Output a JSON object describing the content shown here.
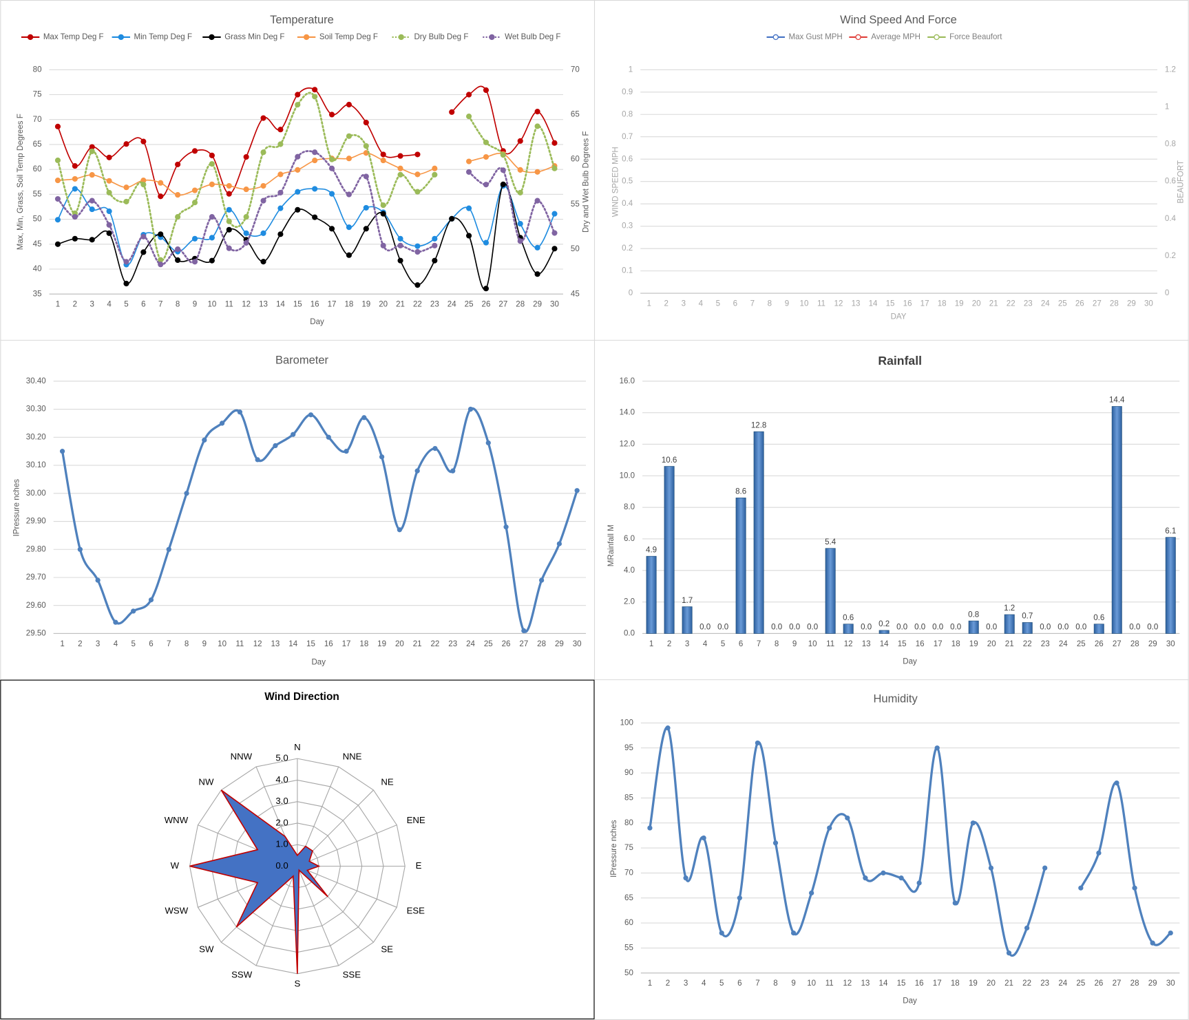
{
  "chart_data": [
    {
      "type": "line",
      "title": "Temperature",
      "xlabel": "Day",
      "ylabel": "Max, Min, Grass, Soil Temp Degrees F",
      "y2label": "Dry and Wet Bulb Degrees F",
      "categories": [
        1,
        2,
        3,
        4,
        5,
        6,
        7,
        8,
        9,
        10,
        11,
        12,
        13,
        14,
        15,
        16,
        17,
        18,
        19,
        20,
        21,
        22,
        23,
        24,
        25,
        26,
        27,
        28,
        29,
        30
      ],
      "ylim": [
        35,
        80
      ],
      "yticks": [
        35,
        40,
        45,
        50,
        55,
        60,
        65,
        70,
        75,
        80
      ],
      "y2lim": [
        45,
        70
      ],
      "y2ticks": [
        45,
        50,
        55,
        60,
        65,
        70
      ],
      "grid": true,
      "legend": "top",
      "series": [
        {
          "name": "Max Temp Deg F",
          "color": "#c00000",
          "marker": "circle",
          "values": [
            68.6,
            60.7,
            64.5,
            62.4,
            65.1,
            65.6,
            54.6,
            61,
            63.7,
            62.8,
            55.1,
            62.5,
            70.3,
            68,
            75,
            76,
            71,
            73,
            69.4,
            63,
            62.7,
            63,
            null,
            71.5,
            75,
            75.9,
            63.7,
            65.7,
            71.6,
            65.3
          ]
        },
        {
          "name": "Min Temp Deg F",
          "color": "#1f8ce0",
          "marker": "circle",
          "values": [
            49.9,
            56.1,
            52,
            51.6,
            40.9,
            46.9,
            46.4,
            43.5,
            46.1,
            46.3,
            51.9,
            47.2,
            47.2,
            52.2,
            55.5,
            56.1,
            55.1,
            48.4,
            52.3,
            51.4,
            46.1,
            44.6,
            46.1,
            50.1,
            52.2,
            45.3,
            56.7,
            49.1,
            44.3,
            51.1
          ]
        },
        {
          "name": "Grass Min Deg F",
          "color": "#000000",
          "marker": "circle",
          "values": [
            45,
            46.1,
            45.9,
            47.2,
            37.1,
            43.4,
            47,
            41.8,
            42.1,
            41.7,
            47.9,
            45.9,
            41.5,
            47,
            51.9,
            50.4,
            48.1,
            42.8,
            48.1,
            51.1,
            41.7,
            36.8,
            41.7,
            50.1,
            46.7,
            36.1,
            57,
            46.3,
            39,
            44.1
          ]
        },
        {
          "name": "Soil Temp Deg F",
          "color": "#f79646",
          "marker": "circle",
          "values": [
            57.8,
            58.1,
            58.9,
            57.7,
            56.4,
            57.8,
            57.3,
            54.9,
            55.8,
            57,
            56.7,
            56,
            56.7,
            59,
            59.9,
            61.8,
            62.2,
            62.2,
            63.3,
            61.8,
            60.2,
            59,
            60.2,
            null,
            61.6,
            62.5,
            63.1,
            59.9,
            59.5,
            60.7
          ]
        },
        {
          "name": "Dry Bulb Deg F",
          "color": "#9bbb59",
          "marker": "circle",
          "line_style": "dotted",
          "axis": "y2",
          "values": [
            59.9,
            54,
            60.9,
            56.3,
            55.3,
            57.2,
            48.8,
            53.6,
            55.2,
            59.5,
            53.1,
            53.6,
            60.8,
            61.7,
            66.1,
            67,
            60,
            62.6,
            61.5,
            54.9,
            58.3,
            56.4,
            58.3,
            null,
            64.8,
            61.9,
            60.5,
            56.3,
            63.7,
            59
          ]
        },
        {
          "name": "Wet Bulb Deg F",
          "color": "#8064a2",
          "marker": "circle",
          "line_style": "dotted",
          "axis": "y2",
          "values": [
            55.6,
            53.6,
            55.4,
            52.7,
            48.6,
            51.4,
            48.3,
            50,
            48.6,
            53.6,
            50.1,
            50.7,
            55.4,
            56.3,
            60.3,
            60.8,
            59,
            56.1,
            58.1,
            50.4,
            50.4,
            49.7,
            50.4,
            null,
            58.6,
            57.2,
            58.8,
            50.9,
            55.4,
            51.8
          ]
        }
      ]
    },
    {
      "type": "line",
      "title": "Wind Speed And Force",
      "xlabel": "DAY",
      "ylabel": "WIND SPEED MPH",
      "y2label": "BEAUFORT",
      "categories": [
        1,
        2,
        3,
        4,
        5,
        6,
        7,
        8,
        9,
        10,
        11,
        12,
        13,
        14,
        15,
        16,
        17,
        18,
        19,
        20,
        21,
        22,
        23,
        24,
        25,
        26,
        27,
        28,
        29,
        30
      ],
      "ylim": [
        0,
        1
      ],
      "yticks": [
        0,
        0.1,
        0.2,
        0.3,
        0.4,
        0.5,
        0.6,
        0.7,
        0.8,
        0.9,
        1
      ],
      "y2lim": [
        0,
        1.2
      ],
      "y2ticks": [
        0,
        0.2,
        0.4,
        0.6,
        0.8,
        1,
        1.2
      ],
      "grid": true,
      "legend": "top",
      "series": [
        {
          "name": "Max Gust MPH",
          "color": "#4472c4",
          "marker": "hollow",
          "values": [
            null,
            null,
            null,
            null,
            null,
            null,
            null,
            null,
            null,
            null,
            null,
            null,
            null,
            null,
            null,
            null,
            null,
            null,
            null,
            null,
            null,
            null,
            null,
            null,
            null,
            null,
            null,
            null,
            null,
            null
          ]
        },
        {
          "name": "Average MPH",
          "color": "#e0403b",
          "marker": "hollow",
          "values": [
            null,
            null,
            null,
            null,
            null,
            null,
            null,
            null,
            null,
            null,
            null,
            null,
            null,
            null,
            null,
            null,
            null,
            null,
            null,
            null,
            null,
            null,
            null,
            null,
            null,
            null,
            null,
            null,
            null,
            null
          ]
        },
        {
          "name": "Force Beaufort",
          "color": "#9bbb59",
          "marker": "hollow",
          "axis": "y2",
          "values": [
            null,
            null,
            null,
            null,
            null,
            null,
            null,
            null,
            null,
            null,
            null,
            null,
            null,
            null,
            null,
            null,
            null,
            null,
            null,
            null,
            null,
            null,
            null,
            null,
            null,
            null,
            null,
            null,
            null,
            null
          ]
        }
      ]
    },
    {
      "type": "line",
      "title": "Barometer",
      "xlabel": "Day",
      "ylabel": "IPressure nches",
      "color": "#4f81bd",
      "categories": [
        1,
        2,
        3,
        4,
        5,
        6,
        7,
        8,
        9,
        10,
        11,
        12,
        13,
        14,
        15,
        16,
        17,
        18,
        19,
        20,
        21,
        22,
        23,
        24,
        25,
        26,
        27,
        28,
        29,
        30
      ],
      "values": [
        30.15,
        29.8,
        29.69,
        29.54,
        29.58,
        29.62,
        29.8,
        30,
        30.19,
        30.25,
        30.29,
        30.12,
        30.17,
        30.21,
        30.28,
        30.2,
        30.15,
        30.27,
        30.13,
        29.87,
        30.08,
        30.16,
        30.08,
        30.3,
        30.18,
        29.88,
        29.51,
        29.69,
        29.82,
        30.01
      ],
      "ylim": [
        29.5,
        30.4
      ],
      "grid": true,
      "yticks": [
        {
          "value": 29.5,
          "label": "29.50"
        },
        {
          "value": 29.6,
          "label": "29.60"
        },
        {
          "value": 29.7,
          "label": "29.70"
        },
        {
          "value": 29.8,
          "label": "29.80"
        },
        {
          "value": 29.9,
          "label": "29.90"
        },
        {
          "value": 30,
          "label": "30.00"
        },
        {
          "value": 30.1,
          "label": "30.10"
        },
        {
          "value": 30.2,
          "label": "30.20"
        },
        {
          "value": 30.3,
          "label": "30.30"
        },
        {
          "value": 30.4,
          "label": "30.40"
        }
      ]
    },
    {
      "type": "bar",
      "title": "Rainfall",
      "xlabel": "Day",
      "ylabel": "MRainfall M",
      "color": "#4f81bd",
      "categories": [
        1,
        2,
        3,
        4,
        5,
        6,
        7,
        8,
        9,
        10,
        11,
        12,
        13,
        14,
        15,
        16,
        17,
        18,
        19,
        20,
        21,
        22,
        23,
        24,
        25,
        26,
        27,
        28,
        29,
        30
      ],
      "values": [
        4.9,
        10.6,
        1.7,
        0,
        0,
        8.6,
        12.8,
        0,
        0,
        0,
        5.4,
        0.6,
        0,
        0.2,
        0,
        0,
        0,
        0,
        0.8,
        0,
        1.2,
        0.7,
        0,
        0,
        0,
        0.6,
        14.4,
        0,
        0,
        6.1
      ],
      "value_labels": [
        "4.9",
        "10.6",
        "1.7",
        "0.0",
        "0.0",
        "8.6",
        "12.8",
        "0.0",
        "0.0",
        "0.0",
        "5.4",
        "0.6",
        "0.0",
        "0.2",
        "0.0",
        "0.0",
        "0.0",
        "0.0",
        "0.8",
        "0.0",
        "1.2",
        "0.7",
        "0.0",
        "0.0",
        "0.0",
        "0.6",
        "14.4",
        "0.0",
        "0.0",
        "6.1"
      ],
      "ylim": [
        0,
        16
      ],
      "grid": true,
      "yticks": [
        {
          "value": 0,
          "label": "0.0"
        },
        {
          "value": 2,
          "label": "2.0"
        },
        {
          "value": 4,
          "label": "4.0"
        },
        {
          "value": 6,
          "label": "6.0"
        },
        {
          "value": 8,
          "label": "8.0"
        },
        {
          "value": 10,
          "label": "10.0"
        },
        {
          "value": 12,
          "label": "12.0"
        },
        {
          "value": 14,
          "label": "14.0"
        },
        {
          "value": 16,
          "label": "16.0"
        }
      ]
    },
    {
      "type": "radar",
      "title": "Wind Direction",
      "color": "#4472c4",
      "edge_color": "#c00000",
      "categories": [
        "N",
        "NNE",
        "NE",
        "ENE",
        "E",
        "ESE",
        "SE",
        "SSE",
        "S",
        "SSW",
        "SW",
        "WSW",
        "W",
        "WNW",
        "NW",
        "NNW"
      ],
      "values": [
        0.5,
        1,
        1,
        0.6,
        1,
        0.5,
        2,
        0.2,
        5,
        0.5,
        4,
        2,
        5,
        2,
        5,
        1.5
      ],
      "rlim": [
        0,
        5
      ],
      "rticks": [
        {
          "value": 0,
          "label": "0.0"
        },
        {
          "value": 1,
          "label": "1.0"
        },
        {
          "value": 2,
          "label": "2.0"
        },
        {
          "value": 3,
          "label": "3.0"
        },
        {
          "value": 4,
          "label": "4.0"
        },
        {
          "value": 5,
          "label": "5.0"
        }
      ]
    },
    {
      "type": "line",
      "title": "Humidity",
      "xlabel": "Day",
      "ylabel": "IPressure nches",
      "color": "#4f81bd",
      "categories": [
        1,
        2,
        3,
        4,
        5,
        6,
        7,
        8,
        9,
        10,
        11,
        12,
        13,
        14,
        15,
        16,
        17,
        18,
        19,
        20,
        21,
        22,
        23,
        24,
        25,
        26,
        27,
        28,
        29,
        30
      ],
      "values": [
        79,
        99,
        69,
        77,
        58,
        65,
        96,
        76,
        58,
        66,
        79,
        81,
        69,
        70,
        69,
        68,
        95,
        64,
        80,
        71,
        54,
        59,
        71,
        null,
        67,
        74,
        88,
        67,
        56,
        58
      ],
      "ylim": [
        50,
        100
      ],
      "yticks": [
        50,
        55,
        60,
        65,
        70,
        75,
        80,
        85,
        90,
        95,
        100
      ],
      "grid": true
    }
  ]
}
